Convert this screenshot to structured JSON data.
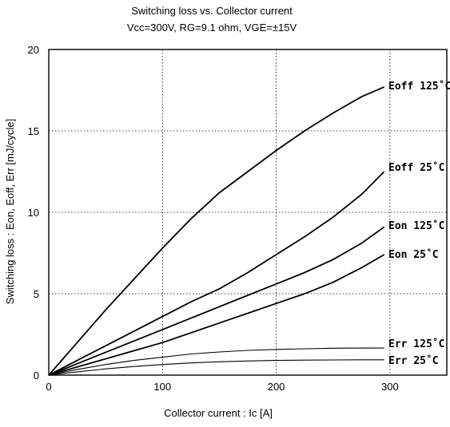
{
  "chart_data": {
    "type": "line",
    "title": "Switching loss  vs.  Collector  current",
    "subtitle": "Vcc=300V, RG=9.1 ohm, VGE=±15V",
    "xlabel": "Collector  current   :  Ic  [A]",
    "ylabel": "Switching  loss  :  Eon, Eoff, Err  [mJ/cycle]",
    "xlim": [
      0,
      350
    ],
    "ylim": [
      0,
      20
    ],
    "xticks": [
      0,
      100,
      200,
      300
    ],
    "yticks": [
      0,
      5,
      10,
      15,
      20
    ],
    "grid": true,
    "series": [
      {
        "name": "Eoff 125°C",
        "x": [
          0,
          25,
          50,
          75,
          100,
          125,
          150,
          175,
          200,
          225,
          250,
          275,
          295
        ],
        "y": [
          0,
          2.0,
          4.0,
          5.9,
          7.8,
          9.6,
          11.2,
          12.5,
          13.8,
          15.0,
          16.1,
          17.1,
          17.7
        ]
      },
      {
        "name": "Eoff 25°C",
        "x": [
          0,
          25,
          50,
          75,
          100,
          125,
          150,
          175,
          200,
          225,
          250,
          275,
          295
        ],
        "y": [
          0,
          0.9,
          1.8,
          2.7,
          3.6,
          4.5,
          5.3,
          6.3,
          7.4,
          8.5,
          9.7,
          11.1,
          12.5
        ]
      },
      {
        "name": "Eon 125°C",
        "x": [
          0,
          25,
          50,
          75,
          100,
          125,
          150,
          175,
          200,
          225,
          250,
          275,
          295
        ],
        "y": [
          0,
          0.7,
          1.4,
          2.1,
          2.8,
          3.5,
          4.2,
          4.9,
          5.6,
          6.3,
          7.1,
          8.1,
          9.1
        ]
      },
      {
        "name": "Eon 25°C",
        "x": [
          0,
          25,
          50,
          75,
          100,
          125,
          150,
          175,
          200,
          225,
          250,
          275,
          295
        ],
        "y": [
          0,
          0.5,
          1.0,
          1.5,
          2.0,
          2.6,
          3.2,
          3.8,
          4.4,
          5.0,
          5.7,
          6.6,
          7.4
        ]
      },
      {
        "name": "Err 125°C",
        "x": [
          0,
          25,
          50,
          75,
          100,
          125,
          150,
          175,
          200,
          225,
          250,
          275,
          295
        ],
        "y": [
          0,
          0.35,
          0.65,
          0.9,
          1.1,
          1.3,
          1.42,
          1.52,
          1.58,
          1.62,
          1.65,
          1.66,
          1.66
        ]
      },
      {
        "name": "Err 25°C",
        "x": [
          0,
          25,
          50,
          75,
          100,
          125,
          150,
          175,
          200,
          225,
          250,
          275,
          295
        ],
        "y": [
          0,
          0.2,
          0.38,
          0.53,
          0.65,
          0.75,
          0.82,
          0.87,
          0.9,
          0.92,
          0.93,
          0.94,
          0.94
        ]
      }
    ],
    "curve_labels": [
      {
        "series": "Eoff 125°C",
        "text": "Eoff 125˚C"
      },
      {
        "series": "Eoff 25°C",
        "text": "Eoff 25˚C"
      },
      {
        "series": "Eon 125°C",
        "text": "Eon 125˚C"
      },
      {
        "series": "Eon 25°C",
        "text": "Eon 25˚C"
      },
      {
        "series": "Err 125°C",
        "text": "Err 125˚C"
      },
      {
        "series": "Err 25°C",
        "text": "Err 25˚C"
      }
    ]
  }
}
